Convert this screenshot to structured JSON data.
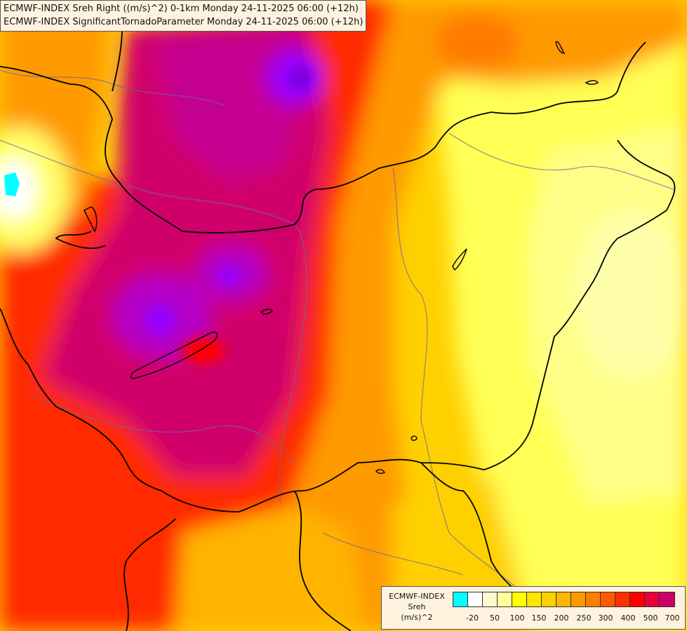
{
  "titles": {
    "line1": "ECMWF-INDEX Sreh Right ((m/s)^2) 0-1km Monday 24-11-2025 06:00 (+12h)",
    "line2": "ECMWF-INDEX SignificantTornadoParameter Monday 24-11-2025 06:00 (+12h)"
  },
  "legend": {
    "model": "ECMWF-INDEX",
    "variable": "Sreh",
    "unit": "(m/s)^2",
    "colors": [
      "#00ffff",
      "#ffffff",
      "#fffacd",
      "#ffff99",
      "#ffff00",
      "#ffe600",
      "#ffd000",
      "#ffb400",
      "#ff9900",
      "#ff7f00",
      "#ff5a00",
      "#ff3000",
      "#ff0000",
      "#e6003c",
      "#cc0066",
      "#c80096",
      "#b400c8",
      "#9600ff",
      "#7800dc",
      "#5000b4",
      "#28008c",
      "#000080"
    ],
    "ticks": [
      "-20",
      "50",
      "100",
      "150",
      "200",
      "250",
      "300",
      "400",
      "500",
      "700"
    ]
  },
  "colors": {
    "low_yellow": "#ffff66",
    "yellow": "#ffe600",
    "orange": "#ff9900",
    "red": "#ff2a00",
    "magenta": "#cc0066",
    "purple": "#9900cc",
    "border": "#000000",
    "river": "#666699"
  }
}
